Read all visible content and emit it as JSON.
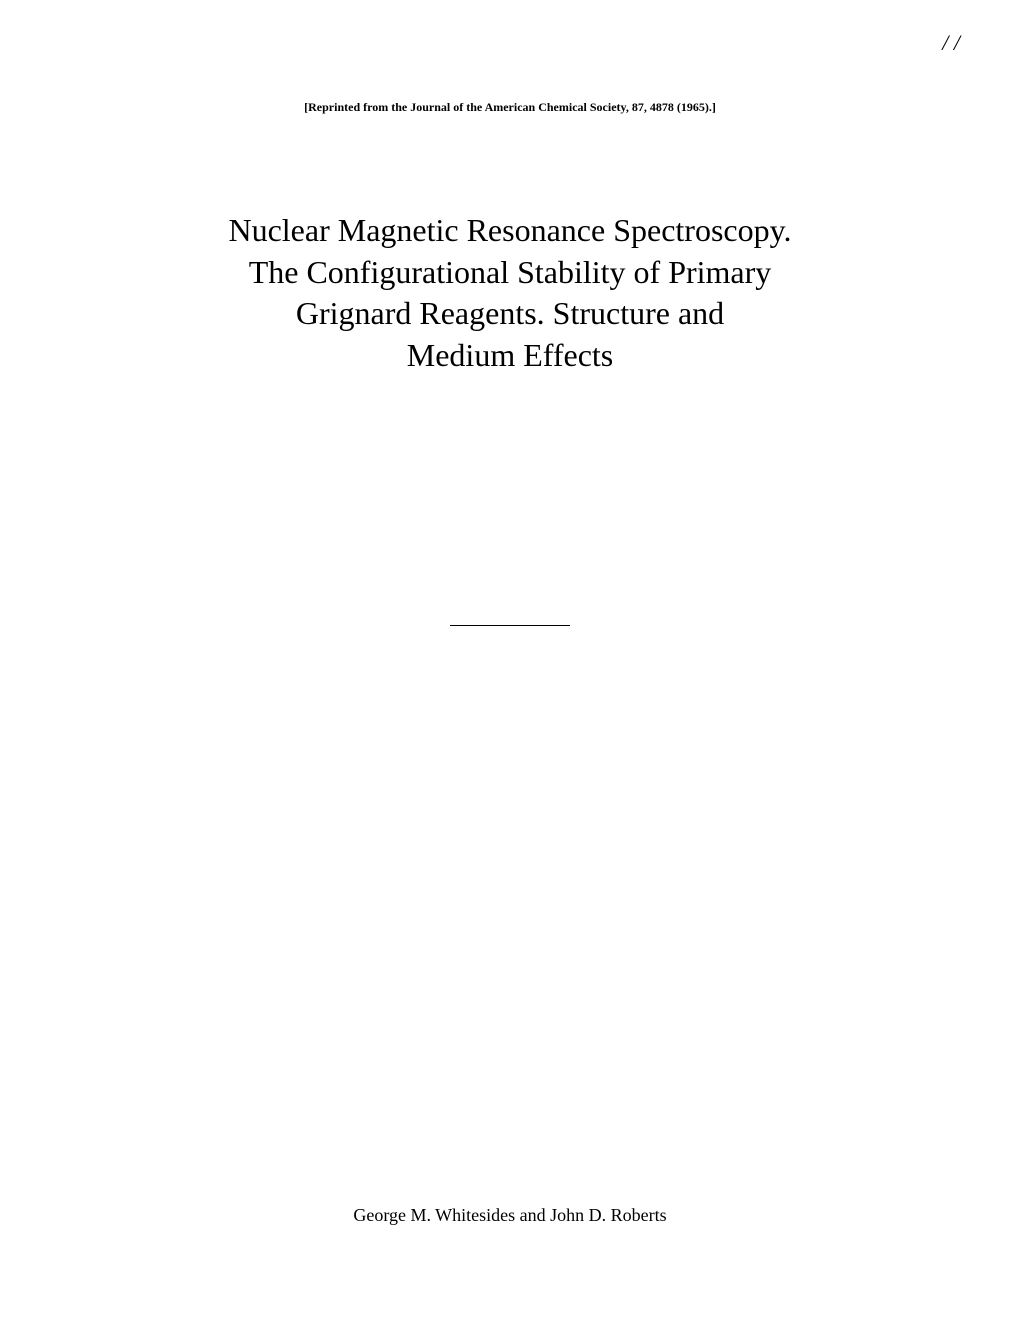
{
  "page_number": "/ /",
  "reprint_citation": "[Reprinted from the Journal of the American Chemical Society, 87, 4878 (1965).]",
  "title": {
    "line1": "Nuclear Magnetic Resonance Spectroscopy.",
    "line2": "The Configurational Stability of Primary",
    "line3": "Grignard Reagents.   Structure and",
    "line4": "Medium Effects"
  },
  "authors": "George M. Whitesides and John D. Roberts",
  "style": {
    "background_color": "#ffffff",
    "text_color": "#000000",
    "title_fontsize": 32,
    "reprint_fontsize": 12,
    "authors_fontsize": 18,
    "page_number_fontsize": 22,
    "font_family": "Times New Roman"
  }
}
